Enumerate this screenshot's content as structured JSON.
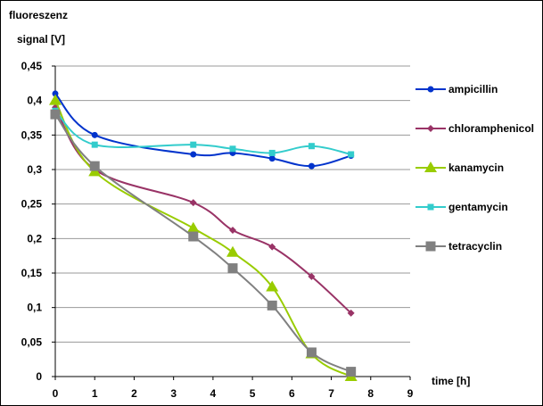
{
  "chart_data": {
    "type": "line",
    "title": "",
    "ylabel_lines": [
      "fluoreszenz",
      "signal [V]"
    ],
    "xlabel": "time [h]",
    "xlim": [
      0,
      9
    ],
    "ylim": [
      0,
      0.45
    ],
    "x_ticks": [
      0,
      1,
      2,
      3,
      4,
      5,
      6,
      7,
      8,
      9
    ],
    "y_ticks": [
      0,
      0.05,
      0.1,
      0.15,
      0.2,
      0.25,
      0.3,
      0.35,
      0.4,
      0.45
    ],
    "y_tick_labels": [
      "0",
      "0,05",
      "0,1",
      "0,15",
      "0,2",
      "0,25",
      "0,3",
      "0,35",
      "0,4",
      "0,45"
    ],
    "grid": "horizontal",
    "legend_position": "right",
    "series": [
      {
        "name": "ampicillin",
        "color": "#0033cc",
        "marker": "circle",
        "x": [
          0,
          1,
          3.5,
          4.5,
          5.5,
          6.5,
          7.5
        ],
        "y": [
          0.41,
          0.35,
          0.322,
          0.324,
          0.316,
          0.305,
          0.32
        ]
      },
      {
        "name": "chloramphenicol",
        "color": "#993366",
        "marker": "diamond",
        "x": [
          0,
          1,
          3.5,
          4.5,
          5.5,
          6.5,
          7.5
        ],
        "y": [
          0.39,
          0.3,
          0.252,
          0.212,
          0.188,
          0.145,
          0.092
        ]
      },
      {
        "name": "kanamycin",
        "color": "#99cc00",
        "marker": "triangle",
        "x": [
          0,
          1,
          3.5,
          4.5,
          5.5,
          6.5,
          7.5
        ],
        "y": [
          0.4,
          0.297,
          0.215,
          0.18,
          0.13,
          0.033,
          0.0
        ]
      },
      {
        "name": "gentamycin",
        "color": "#33cccc",
        "marker": "square-small",
        "x": [
          0,
          1,
          3.5,
          4.5,
          5.5,
          6.5,
          7.5
        ],
        "y": [
          0.385,
          0.336,
          0.336,
          0.33,
          0.324,
          0.334,
          0.322
        ]
      },
      {
        "name": "tetracyclin",
        "color": "#808080",
        "marker": "square",
        "x": [
          0,
          1,
          3.5,
          4.5,
          5.5,
          6.5,
          7.5
        ],
        "y": [
          0.38,
          0.305,
          0.203,
          0.157,
          0.103,
          0.035,
          0.007
        ]
      }
    ]
  }
}
